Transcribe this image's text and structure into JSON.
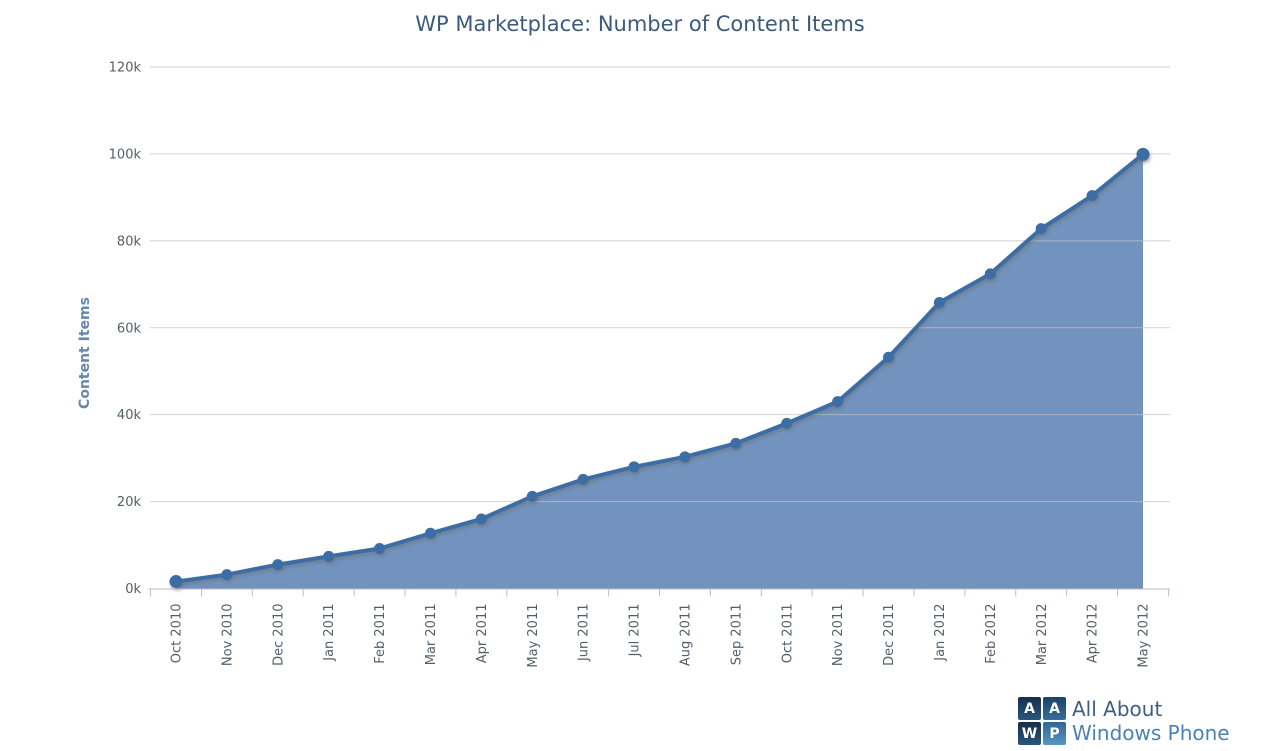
{
  "title": "WP Marketplace: Number of Content Items",
  "chart_data": {
    "type": "area",
    "title": "WP Marketplace: Number of Content Items",
    "xlabel": "",
    "ylabel": "Content Items",
    "categories": [
      "Oct 2010",
      "Nov 2010",
      "Dec 2010",
      "Jan 2011",
      "Feb 2011",
      "Mar 2011",
      "Apr 2011",
      "May 2011",
      "Jun 2011",
      "Jul 2011",
      "Aug 2011",
      "Sep 2011",
      "Oct 2011",
      "Nov 2011",
      "Dec 2011",
      "Jan 2012",
      "Feb 2012",
      "Mar 2012",
      "Apr 2012",
      "May 2012"
    ],
    "values": [
      1600,
      3200,
      5500,
      7400,
      9200,
      12700,
      16000,
      21200,
      25100,
      28000,
      30300,
      33400,
      38000,
      43000,
      53200,
      65800,
      72400,
      82800,
      90400,
      99900
    ],
    "ylim": [
      0,
      120000
    ],
    "ytick_step": 20000,
    "ytick_labels": [
      "0k",
      "20k",
      "40k",
      "60k",
      "80k",
      "100k",
      "120k"
    ],
    "grid": true,
    "legend": false,
    "xtick_rotation": -90,
    "marker": "circle",
    "colors": {
      "area_fill": "#7193be",
      "line": "#3e6da5",
      "marker": "#3e6da5",
      "gridline": "#c3c3c3",
      "axis_line": "#b9bdc0",
      "tick_mark": "#a9c4da",
      "tick_label": "#535f69",
      "y_axis_title": "#6688aa",
      "title": "#3c5a7b"
    }
  },
  "logo": {
    "squares": [
      "A",
      "A",
      "W",
      "P"
    ],
    "line1": "All About",
    "line2": "Windows Phone"
  }
}
